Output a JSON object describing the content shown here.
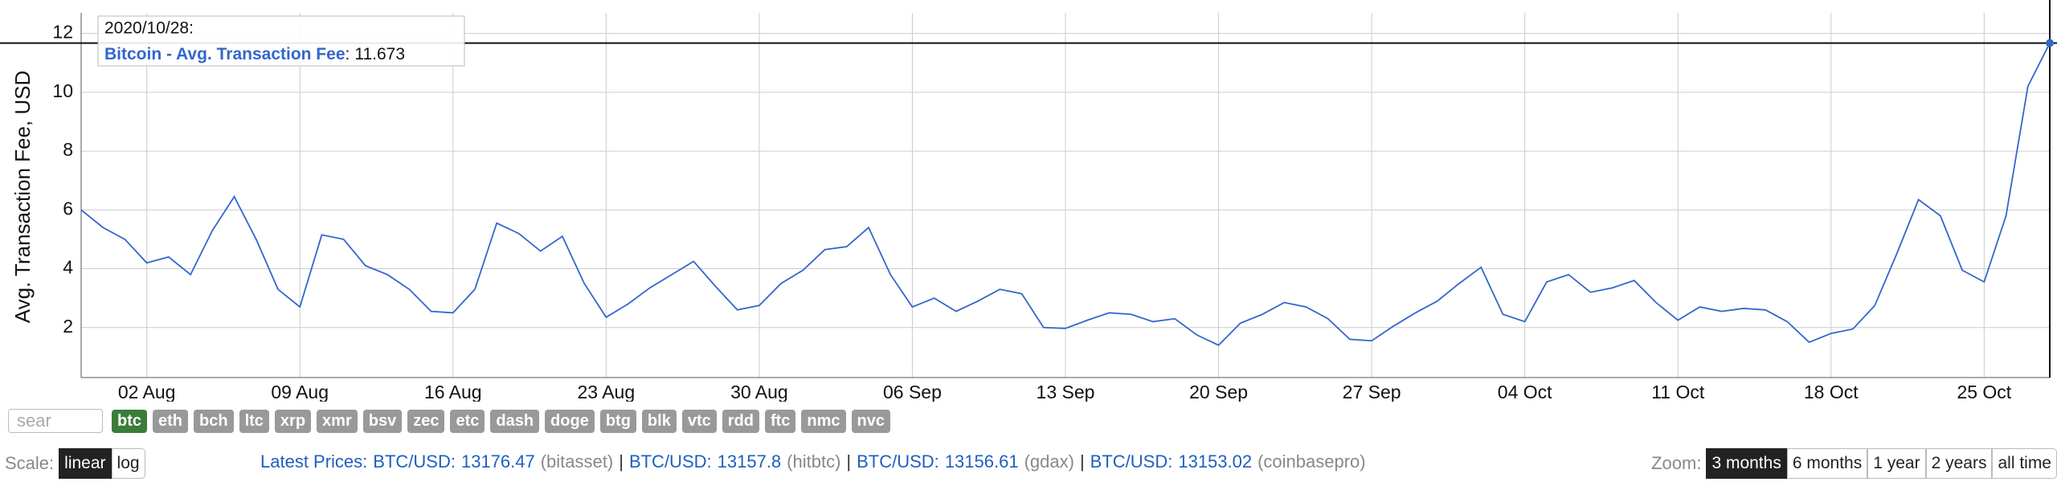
{
  "chart_data": {
    "type": "line",
    "y_label": "Avg. Transaction Fee, USD",
    "x": [
      "2020-07-30",
      "2020-07-31",
      "2020-08-01",
      "2020-08-02",
      "2020-08-03",
      "2020-08-04",
      "2020-08-05",
      "2020-08-06",
      "2020-08-07",
      "2020-08-08",
      "2020-08-09",
      "2020-08-10",
      "2020-08-11",
      "2020-08-12",
      "2020-08-13",
      "2020-08-14",
      "2020-08-15",
      "2020-08-16",
      "2020-08-17",
      "2020-08-18",
      "2020-08-19",
      "2020-08-20",
      "2020-08-21",
      "2020-08-22",
      "2020-08-23",
      "2020-08-24",
      "2020-08-25",
      "2020-08-26",
      "2020-08-27",
      "2020-08-28",
      "2020-08-29",
      "2020-08-30",
      "2020-08-31",
      "2020-09-01",
      "2020-09-02",
      "2020-09-03",
      "2020-09-04",
      "2020-09-05",
      "2020-09-06",
      "2020-09-07",
      "2020-09-08",
      "2020-09-09",
      "2020-09-10",
      "2020-09-11",
      "2020-09-12",
      "2020-09-13",
      "2020-09-14",
      "2020-09-15",
      "2020-09-16",
      "2020-09-17",
      "2020-09-18",
      "2020-09-19",
      "2020-09-20",
      "2020-09-21",
      "2020-09-22",
      "2020-09-23",
      "2020-09-24",
      "2020-09-25",
      "2020-09-26",
      "2020-09-27",
      "2020-09-28",
      "2020-09-29",
      "2020-09-30",
      "2020-10-01",
      "2020-10-02",
      "2020-10-03",
      "2020-10-04",
      "2020-10-05",
      "2020-10-06",
      "2020-10-07",
      "2020-10-08",
      "2020-10-09",
      "2020-10-10",
      "2020-10-11",
      "2020-10-12",
      "2020-10-13",
      "2020-10-14",
      "2020-10-15",
      "2020-10-16",
      "2020-10-17",
      "2020-10-18",
      "2020-10-19",
      "2020-10-20",
      "2020-10-21",
      "2020-10-22",
      "2020-10-23",
      "2020-10-24",
      "2020-10-25",
      "2020-10-26",
      "2020-10-27",
      "2020-10-28"
    ],
    "series": [
      {
        "name": "Bitcoin - Avg. Transaction Fee",
        "color": "#3366cc",
        "values": [
          6.0,
          5.4,
          5.0,
          4.2,
          4.4,
          3.8,
          5.3,
          6.45,
          5.0,
          3.3,
          2.7,
          5.15,
          5.0,
          4.1,
          3.8,
          3.3,
          2.55,
          2.5,
          3.3,
          5.55,
          5.2,
          4.6,
          5.1,
          3.5,
          2.35,
          2.8,
          3.35,
          3.8,
          4.25,
          3.4,
          2.6,
          2.75,
          3.5,
          3.95,
          4.65,
          4.75,
          5.4,
          3.8,
          2.7,
          3.0,
          2.55,
          2.9,
          3.3,
          3.15,
          2.0,
          1.97,
          2.25,
          2.5,
          2.45,
          2.2,
          2.3,
          1.75,
          1.4,
          2.15,
          2.45,
          2.85,
          2.7,
          2.3,
          1.6,
          1.55,
          2.05,
          2.5,
          2.9,
          3.5,
          4.05,
          2.45,
          2.2,
          3.55,
          3.8,
          3.2,
          3.35,
          3.6,
          2.85,
          2.25,
          2.7,
          2.55,
          2.65,
          2.6,
          2.2,
          1.5,
          1.8,
          1.95,
          2.75,
          4.5,
          6.35,
          5.8,
          3.95,
          3.55,
          5.8,
          10.2,
          11.673
        ]
      }
    ],
    "xlim": [
      "2020-07-30",
      "2020-10-28"
    ],
    "xticks": [
      {
        "value": "2020-08-02",
        "label": "02 Aug"
      },
      {
        "value": "2020-08-09",
        "label": "09 Aug"
      },
      {
        "value": "2020-08-16",
        "label": "16 Aug"
      },
      {
        "value": "2020-08-23",
        "label": "23 Aug"
      },
      {
        "value": "2020-08-30",
        "label": "30 Aug"
      },
      {
        "value": "2020-09-06",
        "label": "06 Sep"
      },
      {
        "value": "2020-09-13",
        "label": "13 Sep"
      },
      {
        "value": "2020-09-20",
        "label": "20 Sep"
      },
      {
        "value": "2020-09-27",
        "label": "27 Sep"
      },
      {
        "value": "2020-10-04",
        "label": "04 Oct"
      },
      {
        "value": "2020-10-11",
        "label": "11 Oct"
      },
      {
        "value": "2020-10-18",
        "label": "18 Oct"
      },
      {
        "value": "2020-10-25",
        "label": "25 Oct"
      }
    ],
    "ylim": [
      0.3,
      12.7
    ],
    "yticks": [
      2,
      4,
      6,
      8,
      10,
      12
    ],
    "grid": true,
    "tooltip": {
      "date": "2020/10/28:",
      "separator": ":"
    }
  },
  "controls": {
    "search_placeholder": "sear",
    "coins": [
      "btc",
      "eth",
      "bch",
      "ltc",
      "xrp",
      "xmr",
      "bsv",
      "zec",
      "etc",
      "dash",
      "doge",
      "btg",
      "blk",
      "vtc",
      "rdd",
      "ftc",
      "nmc",
      "nvc"
    ],
    "scale": {
      "label": "Scale:",
      "options": [
        "linear",
        "log"
      ]
    },
    "prices": {
      "label": "Latest Prices:",
      "separator": "|",
      "items": [
        {
          "pair": "BTC/USD:",
          "price": 13176.47,
          "source": "(bitasset)"
        },
        {
          "pair": "BTC/USD:",
          "price": 13157.8,
          "source": "(hitbtc)"
        },
        {
          "pair": "BTC/USD:",
          "price": 13156.61,
          "source": "(gdax)"
        },
        {
          "pair": "BTC/USD:",
          "price": 13153.02,
          "source": "(coinbasepro)"
        }
      ]
    },
    "zoom": {
      "label": "Zoom:",
      "options": [
        "3 months",
        "6 months",
        "1 year",
        "2 years",
        "all time"
      ]
    }
  }
}
